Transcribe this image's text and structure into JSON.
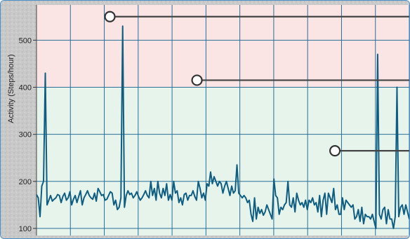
{
  "chart_data": {
    "type": "line",
    "title": "",
    "xlabel": "",
    "ylabel": "Activity  (Steps/hour)",
    "ylim": [
      85,
      575
    ],
    "yticks": [
      100,
      200,
      300,
      400,
      500
    ],
    "ytick_labels": [
      "100",
      "200",
      "300",
      "400",
      "500"
    ],
    "grid": true,
    "zones": [
      {
        "from": 85,
        "to": 400,
        "color": "#e6f4ec"
      },
      {
        "from": 400,
        "to": 575,
        "color": "#fbe4e4"
      }
    ],
    "thresholds": [
      {
        "y": 550,
        "x_start": 75
      },
      {
        "y": 415,
        "x_start": 164
      },
      {
        "y": 265,
        "x_start": 305
      }
    ],
    "series": [
      {
        "color": "#0f5e82",
        "x_start": 0,
        "x_end": 381,
        "values": [
          172,
          165,
          125,
          190,
          200,
          430,
          150,
          160,
          170,
          158,
          162,
          165,
          172,
          170,
          155,
          168,
          175,
          160,
          165,
          178,
          150,
          162,
          170,
          155,
          168,
          180,
          150,
          165,
          172,
          180,
          170,
          165,
          162,
          175,
          158,
          185,
          178,
          170,
          172,
          160,
          162,
          170,
          178,
          175,
          150,
          160,
          140,
          145,
          165,
          530,
          145,
          170,
          180,
          172,
          175,
          165,
          170,
          178,
          168,
          160,
          165,
          172,
          180,
          170,
          165,
          200,
          170,
          185,
          160,
          200,
          175,
          165,
          185,
          170,
          195,
          160,
          172,
          160,
          200,
          175,
          180,
          155,
          165,
          150,
          172,
          175,
          160,
          170,
          170,
          180,
          168,
          160,
          200,
          185,
          165,
          175,
          160,
          195,
          190,
          220,
          195,
          210,
          200,
          190,
          200,
          195,
          175,
          190,
          200,
          185,
          170,
          190,
          175,
          180,
          235,
          175,
          170,
          165,
          170,
          165,
          155,
          160,
          130,
          115,
          165,
          120,
          145,
          132,
          140,
          128,
          135,
          150,
          140,
          130,
          120,
          205,
          170,
          165,
          130,
          145,
          140,
          150,
          155,
          200,
          150,
          145,
          165,
          135,
          175,
          160,
          150,
          155,
          145,
          160,
          140,
          160,
          155,
          165,
          150,
          155,
          135,
          170,
          125,
          160,
          175,
          130,
          175,
          165,
          155,
          185,
          140,
          150,
          130,
          130,
          165,
          140,
          160,
          155,
          150,
          145,
          150,
          120,
          125,
          140,
          115,
          145,
          110,
          130,
          125,
          125,
          120,
          130,
          115,
          100,
          470,
          130,
          120,
          140,
          145,
          110,
          140,
          120,
          120,
          100,
          125,
          400,
          125,
          145,
          150,
          130,
          150,
          135,
          120
        ]
      }
    ]
  }
}
